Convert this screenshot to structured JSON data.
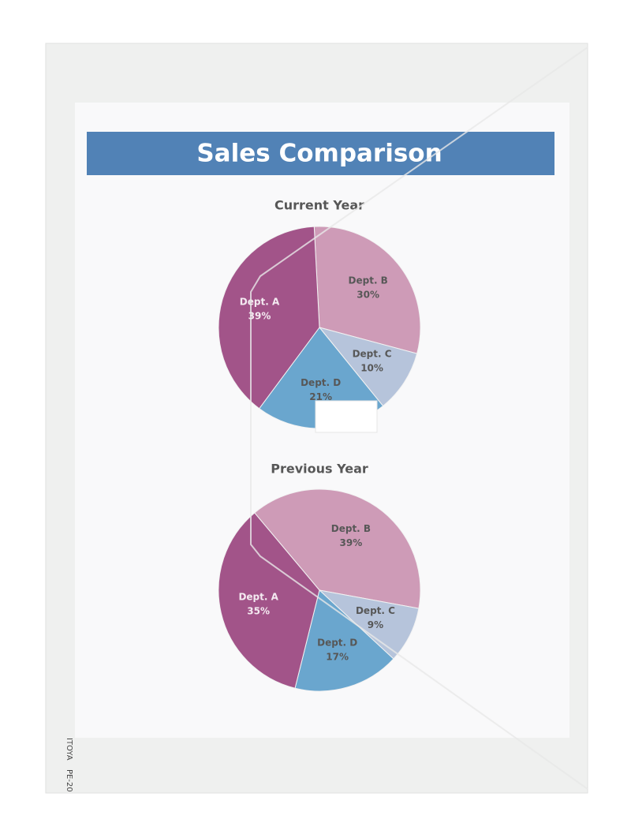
{
  "header": {
    "title": "Sales Comparison"
  },
  "label": {
    "brand": "ITOYA",
    "model": "PE-20"
  },
  "chart_data": [
    {
      "type": "pie",
      "title": "Current Year",
      "categories": [
        "Dept. B",
        "Dept. C",
        "Dept. D",
        "Dept. A"
      ],
      "values": [
        30,
        10,
        21,
        39
      ],
      "value_labels": [
        "30%",
        "10%",
        "21%",
        "39%"
      ],
      "colors": [
        "#c486a8",
        "#a6b8d3",
        "#4a93c4",
        "#8e2f6f"
      ]
    },
    {
      "type": "pie",
      "title": "Previous Year",
      "categories": [
        "Dept. B",
        "Dept. C",
        "Dept. D",
        "Dept. A"
      ],
      "values": [
        39,
        9,
        17,
        35
      ],
      "value_labels": [
        "39%",
        "9%",
        "17%",
        "35%"
      ],
      "colors": [
        "#c486a8",
        "#a6b8d3",
        "#4a93c4",
        "#8e2f6f"
      ]
    }
  ]
}
